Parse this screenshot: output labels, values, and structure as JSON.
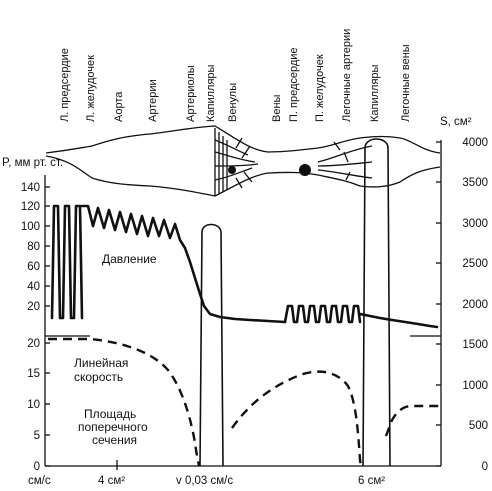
{
  "sections": [
    "Л. предсердие",
    "Л. желудочек",
    "Аорта",
    "Артерии",
    "Артериолы",
    "Капилляры",
    "Венулы",
    "Вены",
    "П. предсердие",
    "П. желудочек",
    "Легочные артерии",
    "Капилляры",
    "Легочные вены"
  ],
  "axes": {
    "left_title": "P, мм рт. ст.",
    "left_ticks_pressure": [
      "140",
      "120",
      "100",
      "80",
      "60",
      "40",
      "20"
    ],
    "left_ticks_velocity": [
      "20",
      "15",
      "10",
      "5",
      "0"
    ],
    "right_title": "S, см²",
    "right_ticks": [
      "4000",
      "3500",
      "3000",
      "2500",
      "2000",
      "1500",
      "1000",
      "500",
      "0"
    ],
    "bottom_labels": {
      "unit": "см/с",
      "area_left": "4 см²",
      "velocity": "v 0,03 см/с",
      "area_right": "6 см²"
    }
  },
  "curve_labels": {
    "pressure": "Давление",
    "velocity_line1": "Линейная",
    "velocity_line2": "скорость",
    "area_line1": "Площадь",
    "area_line2": "поперечного",
    "area_line3": "сечения"
  }
}
